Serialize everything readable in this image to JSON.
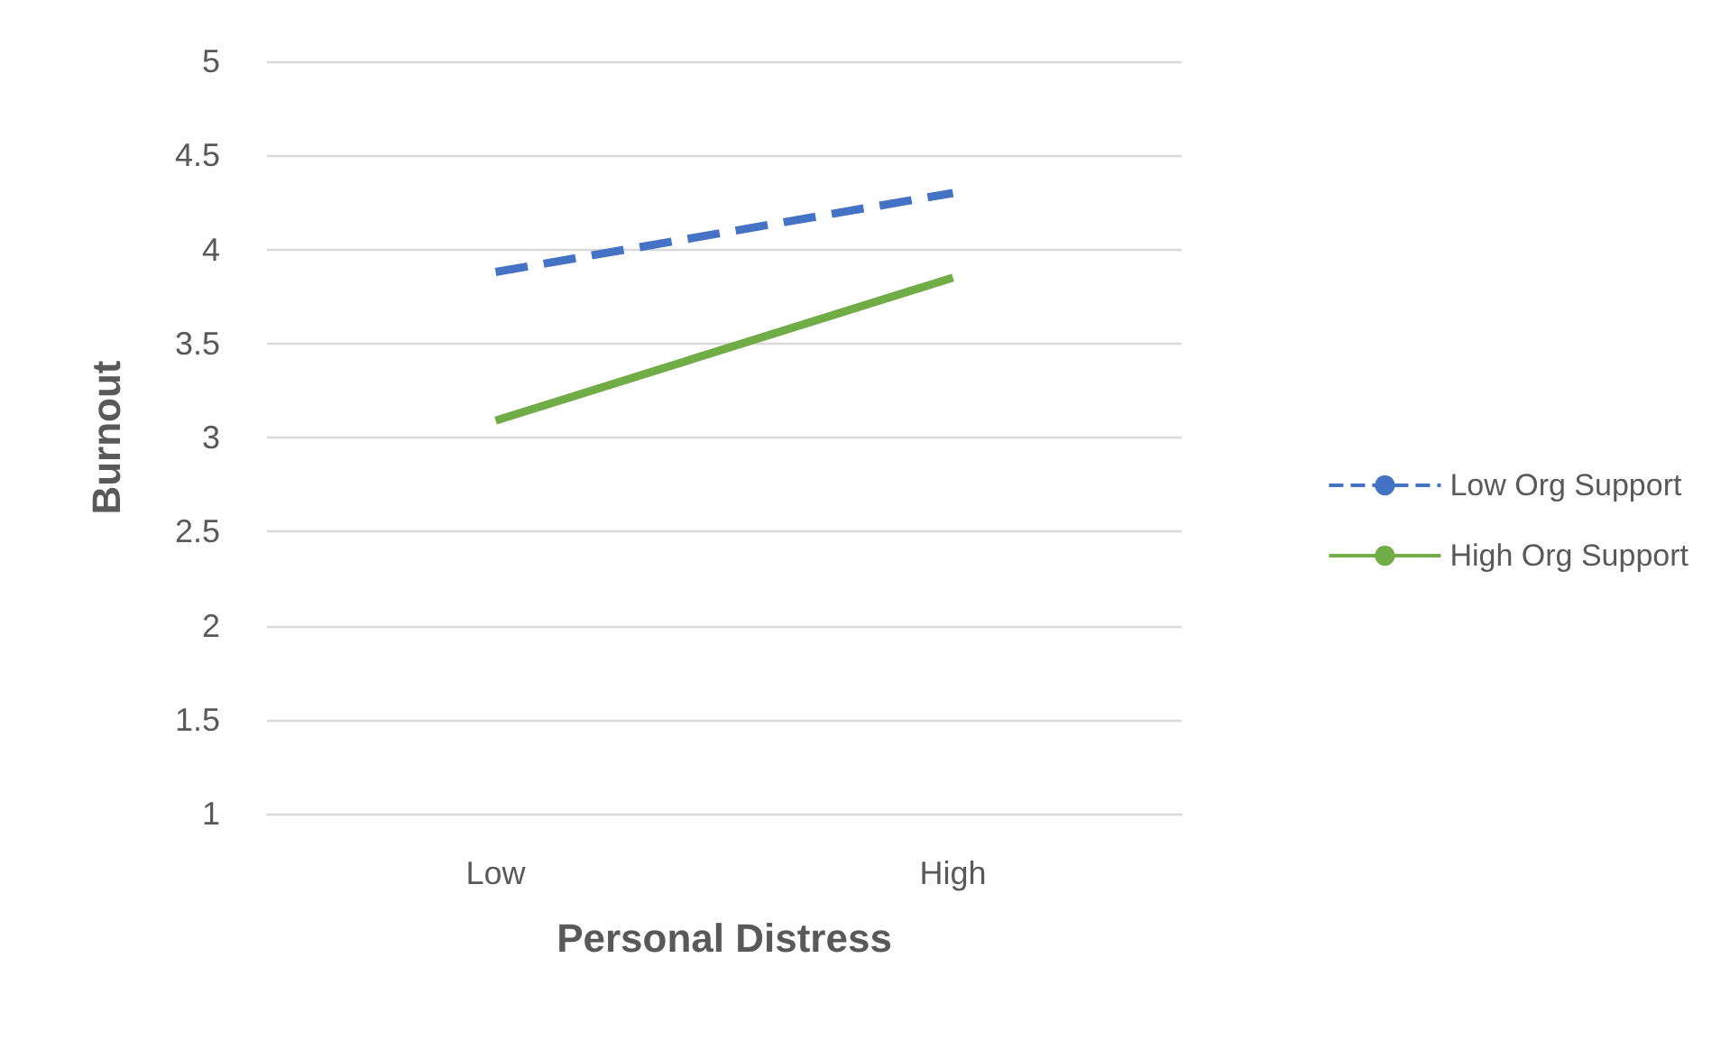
{
  "chart_data": {
    "type": "line",
    "xlabel": "Personal Distress",
    "ylabel": "Burnout",
    "categories": [
      "Low",
      "High"
    ],
    "series": [
      {
        "name": "Low Org Support",
        "color": "#4472c4",
        "values": [
          3.88,
          4.3
        ],
        "line_style": "dashed"
      },
      {
        "name": "High Org Support",
        "color": "#70ad47",
        "values": [
          3.09,
          3.85
        ],
        "line_style": "solid"
      }
    ],
    "ylim": [
      1,
      5
    ],
    "yticks": [
      1,
      1.5,
      2,
      2.5,
      3,
      3.5,
      4,
      4.5,
      5
    ],
    "grid": "y",
    "legend": "right",
    "marker": "none"
  }
}
